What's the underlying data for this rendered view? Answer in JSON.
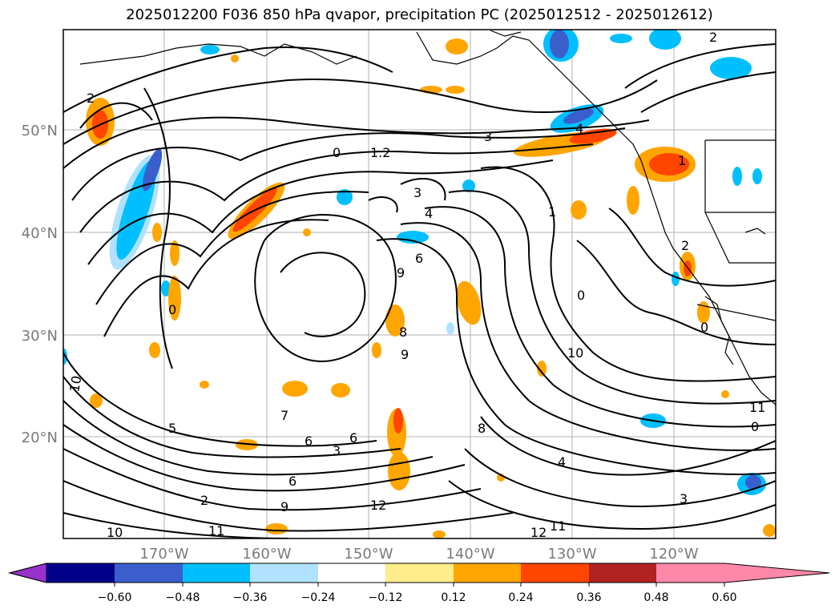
{
  "title": "2025012200 F036 850 hPa qvapor, precipitation PC (2025012512 - 2025012612)",
  "map": {
    "lat_labels": [
      "50°N",
      "40°N",
      "30°N",
      "20°N"
    ],
    "lon_labels": [
      "170°W",
      "160°W",
      "150°W",
      "140°W",
      "130°W",
      "120°W"
    ],
    "contour_labels": [
      "2",
      "0",
      "1.2",
      "3",
      "3",
      "4",
      "1",
      "9",
      "6",
      "2",
      "0",
      "8",
      "9",
      "0",
      "10",
      "5",
      "7",
      "6",
      "3",
      "6",
      "8",
      "4",
      "12",
      "6",
      "9",
      "2",
      "11",
      "10",
      "12",
      "11",
      "1",
      "3",
      "2",
      "0",
      "11",
      "0",
      "10",
      "4"
    ]
  },
  "colorbar": {
    "ticks": [
      "−0.60",
      "−0.48",
      "−0.36",
      "−0.24",
      "−0.12",
      "0.12",
      "0.24",
      "0.36",
      "0.48",
      "0.60"
    ],
    "colors": [
      "#9932cc",
      "#00008b",
      "#3a5fcd",
      "#00bfff",
      "#b0e2ff",
      "#ffffff",
      "#ffec8b",
      "#ffa500",
      "#ff4500",
      "#b22222",
      "#ff88aa"
    ]
  }
}
